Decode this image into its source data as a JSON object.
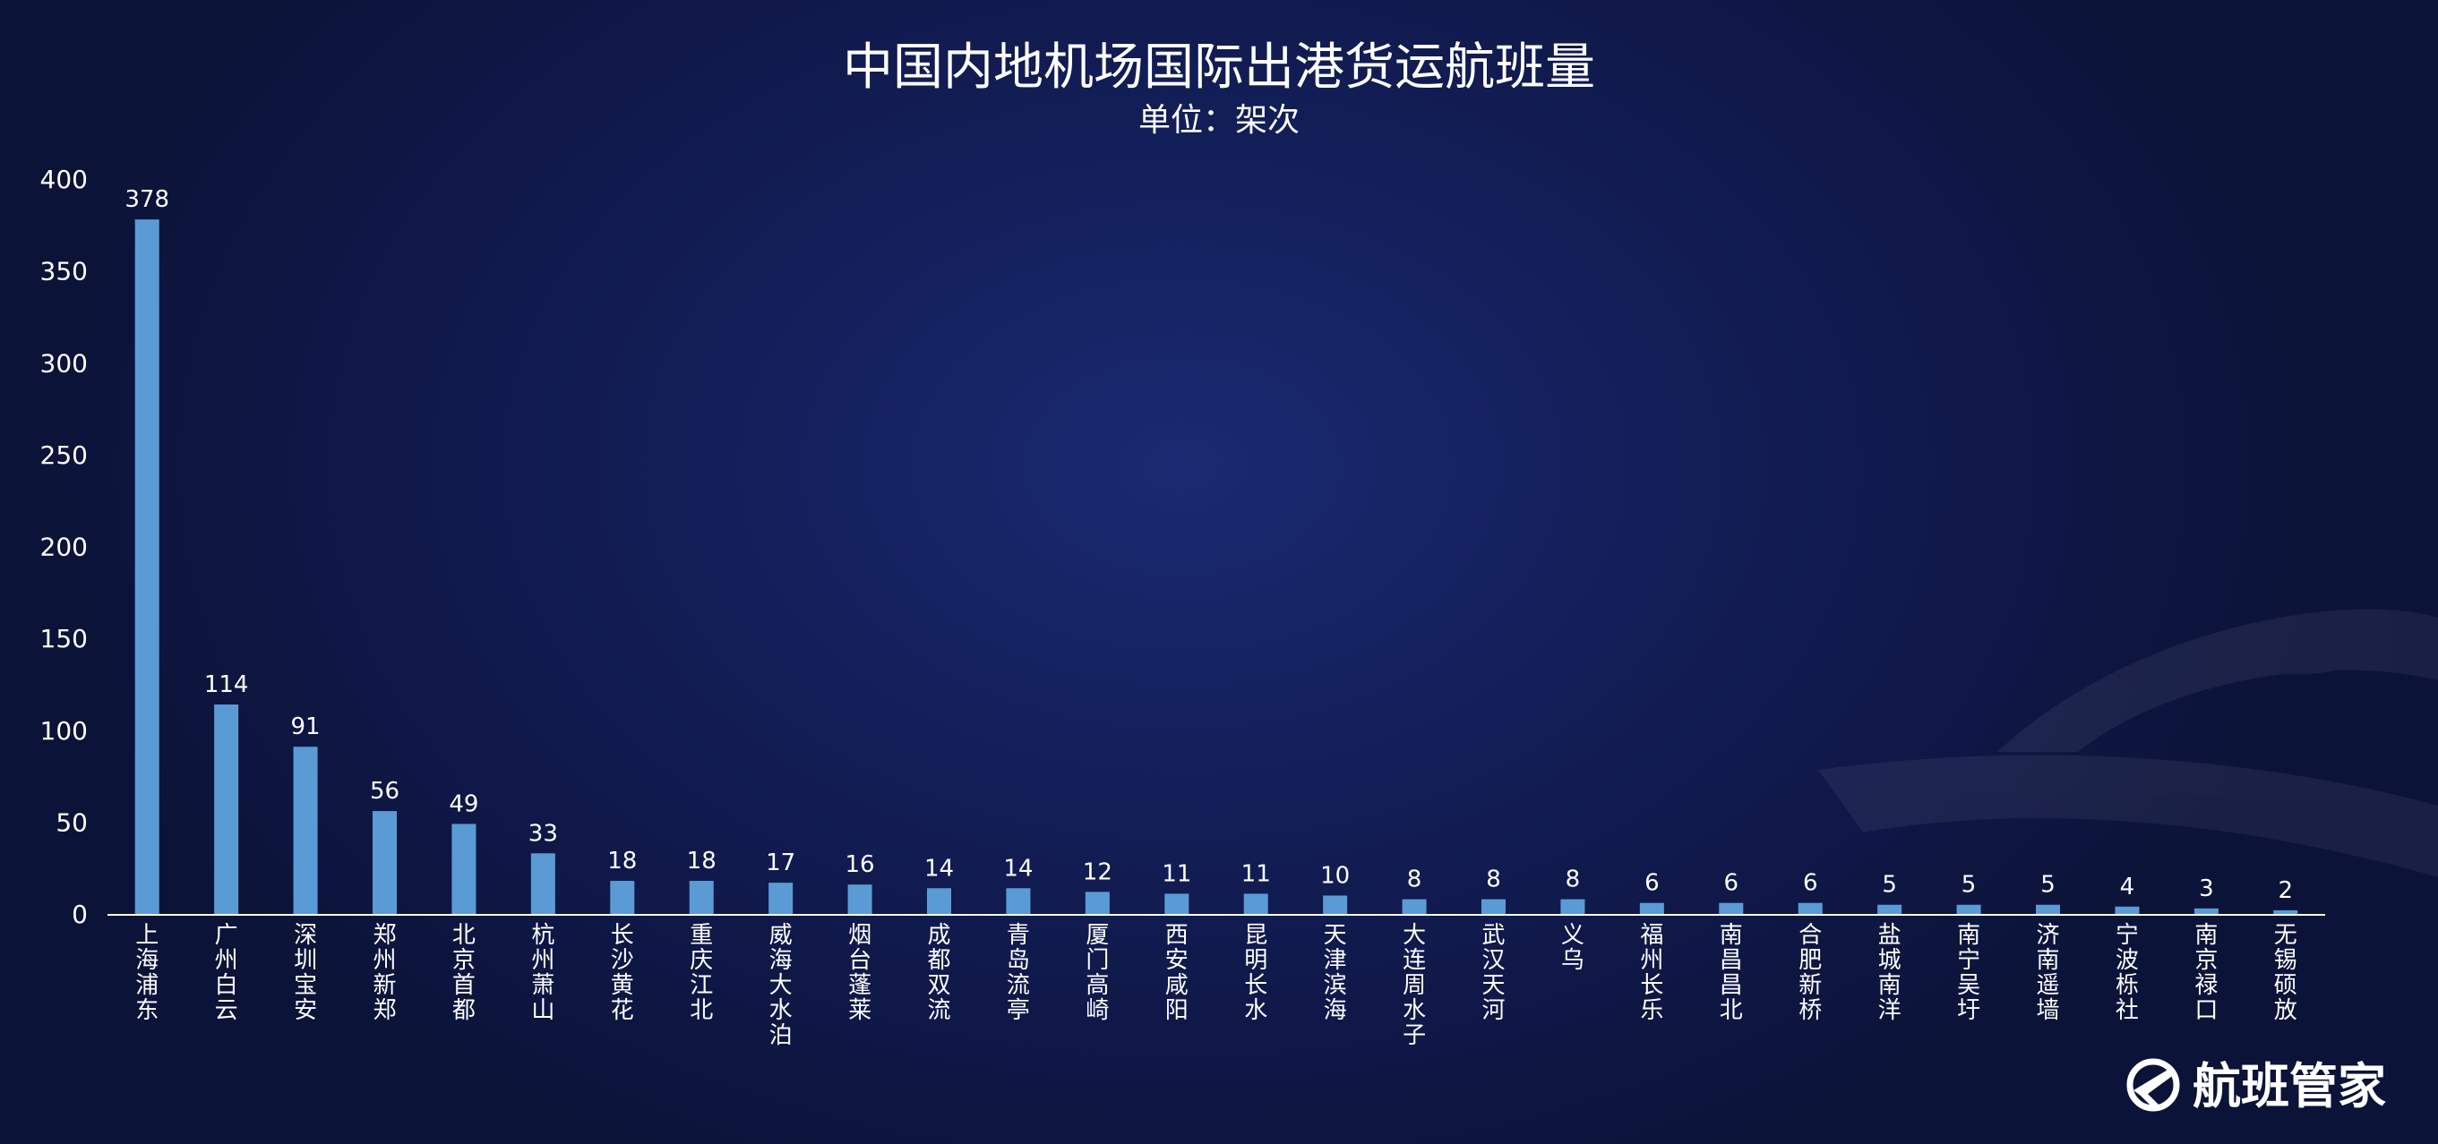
{
  "chart_data": {
    "type": "bar",
    "title": "中国内地机场国际出港货运航班量",
    "subtitle": "单位：架次",
    "categories": [
      "上海浦东",
      "广州白云",
      "深圳宝安",
      "郑州新郑",
      "北京首都",
      "杭州萧山",
      "长沙黄花",
      "重庆江北",
      "威海大水泊",
      "烟台蓬莱",
      "成都双流",
      "青岛流亭",
      "厦门高崎",
      "西安咸阳",
      "昆明长水",
      "天津滨海",
      "大连周水子",
      "武汉天河",
      "义乌",
      "福州长乐",
      "南昌昌北",
      "合肥新桥",
      "盐城南洋",
      "南宁吴圩",
      "济南遥墙",
      "宁波栎社",
      "南京禄口",
      "无锡硕放"
    ],
    "values": [
      378,
      114,
      91,
      56,
      49,
      33,
      18,
      18,
      17,
      16,
      14,
      14,
      12,
      11,
      11,
      10,
      8,
      8,
      8,
      6,
      6,
      6,
      5,
      5,
      5,
      4,
      3,
      2
    ],
    "ylim": [
      0,
      400
    ],
    "yticks": [
      0,
      50,
      100,
      150,
      200,
      250,
      300,
      350,
      400
    ],
    "grid": false,
    "bar_color": "#5b9bd5",
    "axis_color": "#ffffff"
  },
  "logo": {
    "text": "航班管家",
    "icon": "airplane-logo-icon"
  }
}
